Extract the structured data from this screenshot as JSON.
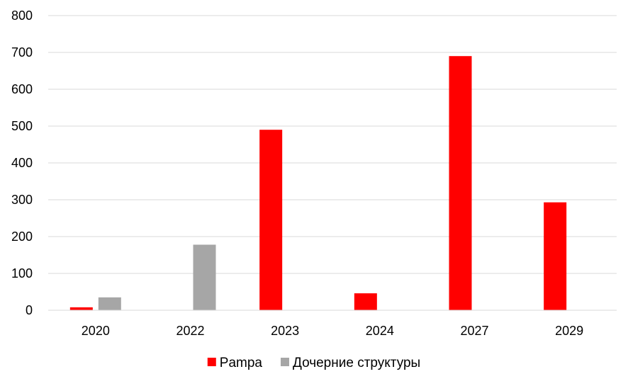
{
  "chart_data": {
    "type": "bar",
    "title": "",
    "xlabel": "",
    "ylabel": "",
    "categories": [
      "2020",
      "2022",
      "2023",
      "2024",
      "2027",
      "2029"
    ],
    "series": [
      {
        "name": "Pampa",
        "color": "#ff0000",
        "values": [
          8,
          0,
          490,
          46,
          690,
          293
        ]
      },
      {
        "name": "Дочерние структуры",
        "color": "#a6a6a6",
        "values": [
          35,
          178,
          0,
          0,
          0,
          0
        ]
      }
    ],
    "ylim": [
      0,
      800
    ],
    "yticks": [
      0,
      100,
      200,
      300,
      400,
      500,
      600,
      700,
      800
    ],
    "grid": true,
    "legend_position": "bottom"
  }
}
